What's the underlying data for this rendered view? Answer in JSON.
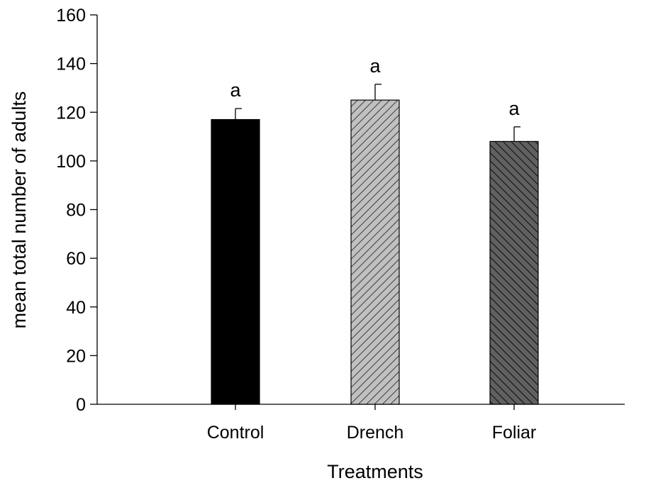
{
  "chart_data": {
    "type": "bar",
    "title": "",
    "xlabel": "Treatments",
    "ylabel": "mean total number of adults",
    "ylim": [
      0,
      160
    ],
    "yticks": [
      0,
      20,
      40,
      60,
      80,
      100,
      120,
      140,
      160
    ],
    "categories": [
      "Control",
      "Drench",
      "Foliar"
    ],
    "values": [
      117,
      125,
      108
    ],
    "error_upper": [
      4.5,
      6.5,
      6
    ],
    "significance_labels": [
      "a",
      "a",
      "a"
    ],
    "bar_styles": [
      {
        "fill": "#000000",
        "hatch": "none"
      },
      {
        "fill": "#c0c0c0",
        "hatch": "diagonal-up",
        "hatch_color": "#1a1a1a"
      },
      {
        "fill": "#606060",
        "hatch": "diagonal-down",
        "hatch_color": "#000000"
      }
    ],
    "grid": false,
    "legend": "none"
  }
}
